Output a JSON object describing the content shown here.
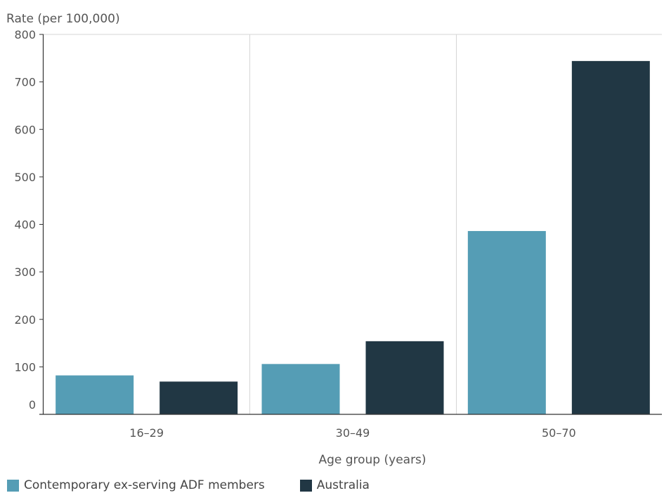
{
  "chart_data": {
    "type": "bar",
    "ylabel": "Rate (per 100,000)",
    "xlabel": "Age group (years)",
    "categories": [
      "16–29",
      "30–49",
      "50–70"
    ],
    "series": [
      {
        "name": "Contemporary ex-serving ADF members",
        "color": "#559dB5",
        "values": [
          82,
          106,
          386
        ]
      },
      {
        "name": "Australia",
        "color": "#213744",
        "values": [
          69,
          154,
          744
        ]
      }
    ],
    "ylim": [
      0,
      800
    ],
    "yticks": [
      "0",
      "100",
      "200",
      "300",
      "400",
      "500",
      "600",
      "700",
      "800"
    ],
    "grid": "vertical separators between categories",
    "legend_position": "bottom-left"
  }
}
